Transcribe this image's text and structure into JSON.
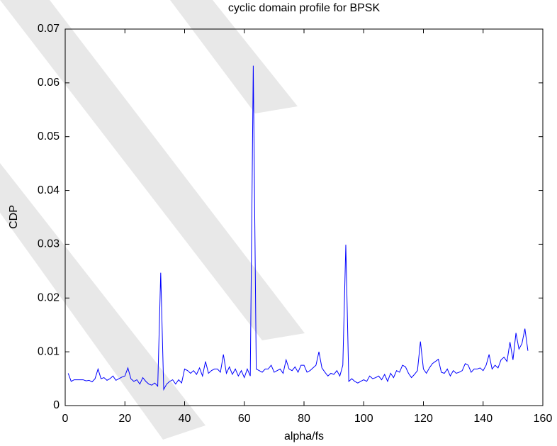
{
  "chart_data": {
    "type": "line",
    "title": "cyclic domain profile for BPSK",
    "x_label": "alpha/fs",
    "y_label": "CDP",
    "xlim": [
      0,
      160
    ],
    "xticks": [
      0,
      20,
      40,
      60,
      80,
      100,
      120,
      140,
      160
    ],
    "ylim": [
      0,
      0.07
    ],
    "yticks": [
      0,
      0.01,
      0.02,
      0.03,
      0.04,
      0.05,
      0.06,
      0.07
    ],
    "grid": false,
    "x": [
      1,
      2,
      3,
      4,
      5,
      6,
      7,
      8,
      9,
      10,
      11,
      12,
      13,
      14,
      15,
      16,
      17,
      18,
      19,
      20,
      21,
      22,
      23,
      24,
      25,
      26,
      27,
      28,
      29,
      30,
      31,
      32,
      33,
      34,
      35,
      36,
      37,
      38,
      39,
      40,
      41,
      42,
      43,
      44,
      45,
      46,
      47,
      48,
      49,
      50,
      51,
      52,
      53,
      54,
      55,
      56,
      57,
      58,
      59,
      60,
      61,
      62,
      63,
      64,
      65,
      66,
      67,
      68,
      69,
      70,
      71,
      72,
      73,
      74,
      75,
      76,
      77,
      78,
      79,
      80,
      81,
      82,
      83,
      84,
      85,
      86,
      87,
      88,
      89,
      90,
      91,
      92,
      93,
      94,
      95,
      96,
      97,
      98,
      99,
      100,
      101,
      102,
      103,
      104,
      105,
      106,
      107,
      108,
      109,
      110,
      111,
      112,
      113,
      114,
      115,
      116,
      117,
      118,
      119,
      120,
      121,
      122,
      123,
      124,
      125,
      126,
      127,
      128,
      129,
      130,
      131,
      132,
      133,
      134,
      135,
      136,
      137,
      138,
      139,
      140,
      141,
      142,
      143,
      144,
      145,
      146,
      147,
      148,
      149,
      150,
      151,
      152,
      153,
      154,
      155
    ],
    "series": [
      {
        "name": "CDP",
        "color": "#0000ff",
        "values": [
          0.006,
          0.0045,
          0.0048,
          0.0048,
          0.0048,
          0.0048,
          0.0046,
          0.0047,
          0.0044,
          0.005,
          0.0068,
          0.005,
          0.0052,
          0.0047,
          0.005,
          0.0055,
          0.0047,
          0.005,
          0.0053,
          0.0055,
          0.007,
          0.005,
          0.0045,
          0.0048,
          0.004,
          0.0052,
          0.0045,
          0.004,
          0.0038,
          0.0042,
          0.0036,
          0.0247,
          0.003,
          0.004,
          0.0045,
          0.0048,
          0.004,
          0.0048,
          0.0042,
          0.0068,
          0.0065,
          0.006,
          0.0065,
          0.0058,
          0.007,
          0.0055,
          0.0082,
          0.006,
          0.0065,
          0.0068,
          0.0068,
          0.0062,
          0.0095,
          0.006,
          0.0072,
          0.0058,
          0.0068,
          0.0055,
          0.0065,
          0.0052,
          0.0068,
          0.0055,
          0.0632,
          0.0068,
          0.0065,
          0.0062,
          0.0068,
          0.0068,
          0.0075,
          0.0062,
          0.0065,
          0.0068,
          0.006,
          0.0085,
          0.0068,
          0.0065,
          0.0072,
          0.0062,
          0.0075,
          0.0075,
          0.0062,
          0.0065,
          0.007,
          0.0075,
          0.01,
          0.007,
          0.0062,
          0.0055,
          0.006,
          0.0058,
          0.0065,
          0.0055,
          0.0075,
          0.0299,
          0.0045,
          0.005,
          0.0045,
          0.0042,
          0.0045,
          0.0048,
          0.0045,
          0.0055,
          0.005,
          0.0052,
          0.0055,
          0.0048,
          0.0058,
          0.0045,
          0.006,
          0.0052,
          0.0065,
          0.0062,
          0.0075,
          0.0072,
          0.006,
          0.0052,
          0.0058,
          0.0065,
          0.0119,
          0.0068,
          0.006,
          0.007,
          0.0078,
          0.0082,
          0.0086,
          0.0062,
          0.006,
          0.0068,
          0.0055,
          0.0065,
          0.006,
          0.0062,
          0.0065,
          0.0078,
          0.0075,
          0.0062,
          0.0068,
          0.0068,
          0.007,
          0.0065,
          0.0075,
          0.0095,
          0.0068,
          0.0075,
          0.007,
          0.0085,
          0.009,
          0.0082,
          0.0118,
          0.0085,
          0.0135,
          0.0105,
          0.0115,
          0.0143,
          0.0102
        ]
      }
    ]
  }
}
